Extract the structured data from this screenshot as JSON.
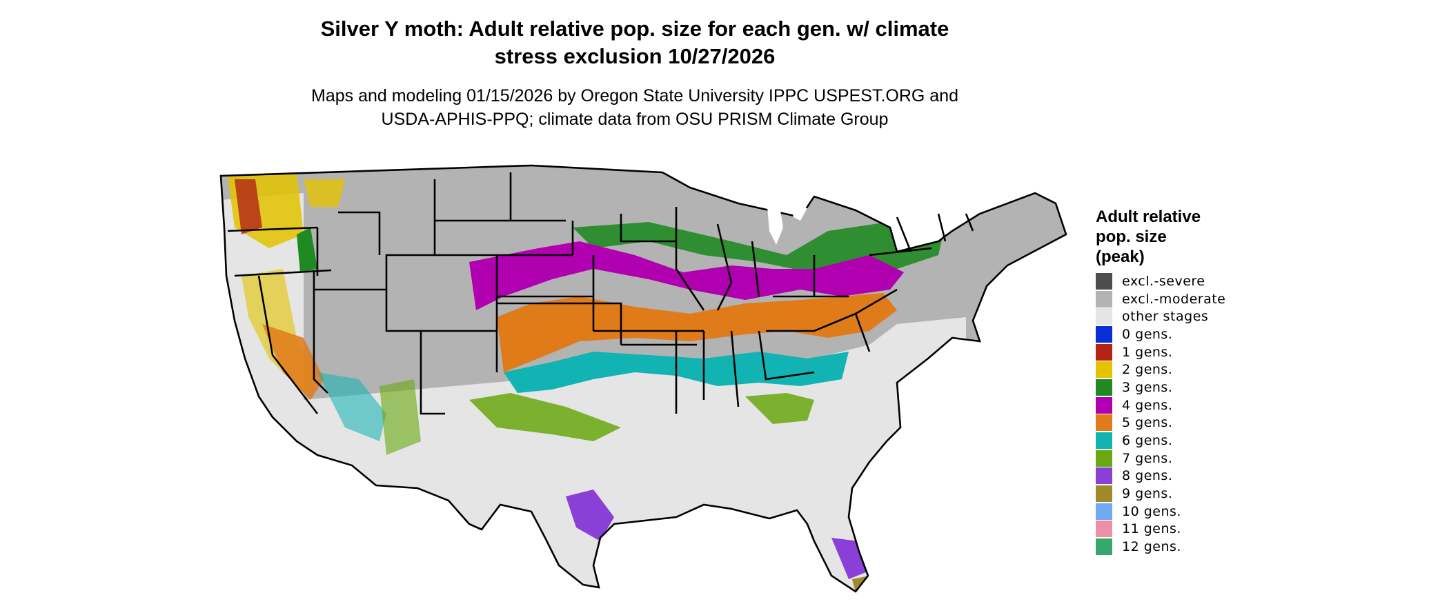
{
  "title_lines": [
    "Silver Y moth: Adult relative pop. size for each gen. w/ climate",
    "stress exclusion 10/27/2026"
  ],
  "subtitle_lines": [
    "Maps and modeling 01/15/2026 by Oregon State University IPPC USPEST.ORG and",
    "USDA-APHIS-PPQ; climate data from OSU PRISM Climate Group"
  ],
  "legend": {
    "title_lines": [
      "Adult relative",
      "pop. size",
      "(peak)"
    ],
    "items": [
      {
        "label": "excl.-severe",
        "color": "#4d4d4d"
      },
      {
        "label": "excl.-moderate",
        "color": "#b3b3b3"
      },
      {
        "label": "other stages",
        "color": "#e5e5e5"
      },
      {
        "label": "0 gens.",
        "color": "#0a2fd6"
      },
      {
        "label": "1 gens.",
        "color": "#b22415"
      },
      {
        "label": "2 gens.",
        "color": "#e3c300"
      },
      {
        "label": "3 gens.",
        "color": "#1f8a22"
      },
      {
        "label": "4 gens.",
        "color": "#b000b0"
      },
      {
        "label": "5 gens.",
        "color": "#e07b1a"
      },
      {
        "label": "6 gens.",
        "color": "#11b3b3"
      },
      {
        "label": "7 gens.",
        "color": "#69a80f"
      },
      {
        "label": "8 gens.",
        "color": "#8a3fd6"
      },
      {
        "label": "9 gens.",
        "color": "#9f8a2a"
      },
      {
        "label": "10 gens.",
        "color": "#71aaf0"
      },
      {
        "label": "11 gens.",
        "color": "#ee8fa8"
      },
      {
        "label": "12 gens.",
        "color": "#36a86c"
      }
    ]
  }
}
